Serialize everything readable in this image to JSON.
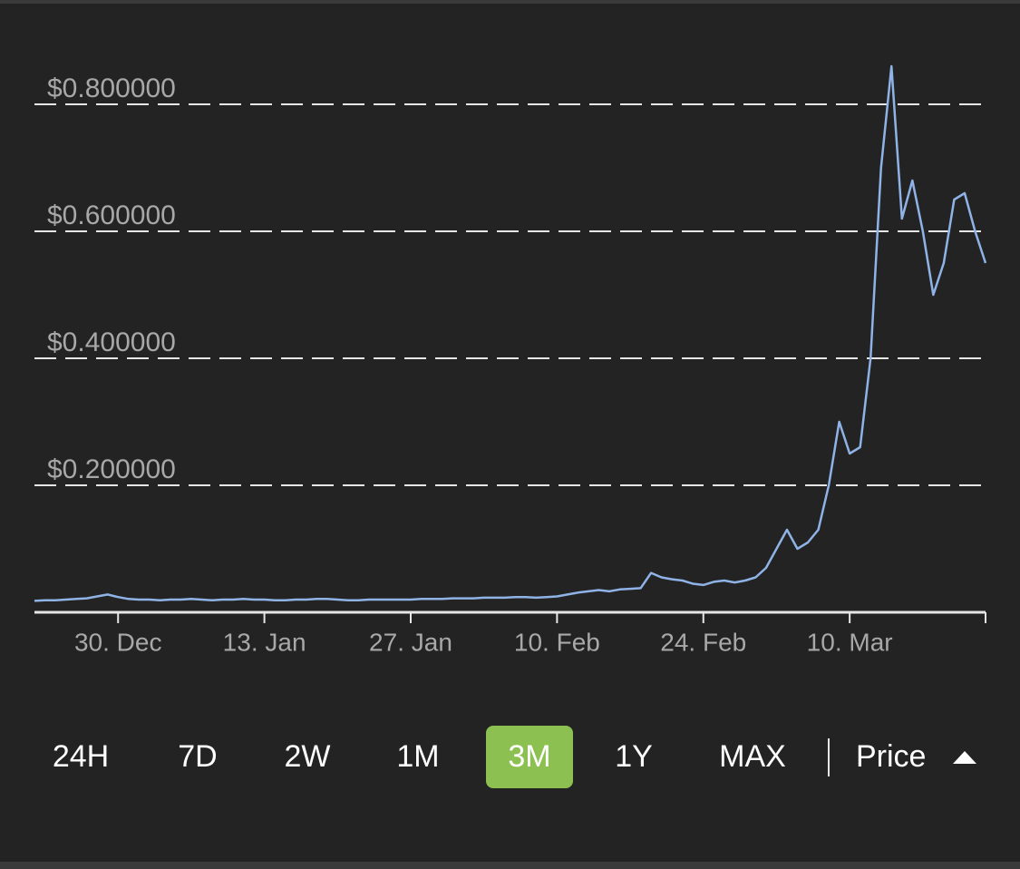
{
  "chart_data": {
    "type": "line",
    "x": [
      "22. Dec",
      "23. Dec",
      "24. Dec",
      "25. Dec",
      "26. Dec",
      "27. Dec",
      "28. Dec",
      "29. Dec",
      "30. Dec",
      "31. Dec",
      "1. Jan",
      "2. Jan",
      "3. Jan",
      "4. Jan",
      "5. Jan",
      "6. Jan",
      "7. Jan",
      "8. Jan",
      "9. Jan",
      "10. Jan",
      "11. Jan",
      "12. Jan",
      "13. Jan",
      "14. Jan",
      "15. Jan",
      "16. Jan",
      "17. Jan",
      "18. Jan",
      "19. Jan",
      "20. Jan",
      "21. Jan",
      "22. Jan",
      "23. Jan",
      "24. Jan",
      "25. Jan",
      "26. Jan",
      "27. Jan",
      "28. Jan",
      "29. Jan",
      "30. Jan",
      "31. Jan",
      "1. Feb",
      "2. Feb",
      "3. Feb",
      "4. Feb",
      "5. Feb",
      "6. Feb",
      "7. Feb",
      "8. Feb",
      "9. Feb",
      "10. Feb",
      "11. Feb",
      "12. Feb",
      "13. Feb",
      "14. Feb",
      "15. Feb",
      "16. Feb",
      "17. Feb",
      "18. Feb",
      "19. Feb",
      "20. Feb",
      "21. Feb",
      "22. Feb",
      "23. Feb",
      "24. Feb",
      "25. Feb",
      "26. Feb",
      "27. Feb",
      "28. Feb",
      "1. Mar",
      "2. Mar",
      "3. Mar",
      "4. Mar",
      "5. Mar",
      "6. Mar",
      "7. Mar",
      "8. Mar",
      "9. Mar",
      "10. Mar",
      "11. Mar",
      "12. Mar",
      "13. Mar",
      "14. Mar",
      "15. Mar",
      "16. Mar",
      "17. Mar",
      "18. Mar",
      "19. Mar",
      "20. Mar",
      "21. Mar",
      "22. Mar",
      "23. Mar"
    ],
    "series": [
      {
        "name": "Price",
        "color": "#8fb3e6",
        "values": [
          0.018,
          0.019,
          0.019,
          0.02,
          0.021,
          0.022,
          0.025,
          0.028,
          0.024,
          0.021,
          0.02,
          0.02,
          0.019,
          0.02,
          0.02,
          0.021,
          0.02,
          0.019,
          0.02,
          0.02,
          0.021,
          0.02,
          0.02,
          0.019,
          0.019,
          0.02,
          0.02,
          0.021,
          0.021,
          0.02,
          0.019,
          0.019,
          0.02,
          0.02,
          0.02,
          0.02,
          0.02,
          0.021,
          0.021,
          0.021,
          0.022,
          0.022,
          0.022,
          0.023,
          0.023,
          0.023,
          0.024,
          0.024,
          0.023,
          0.024,
          0.025,
          0.028,
          0.031,
          0.033,
          0.035,
          0.033,
          0.036,
          0.037,
          0.038,
          0.062,
          0.055,
          0.052,
          0.05,
          0.045,
          0.043,
          0.048,
          0.05,
          0.047,
          0.05,
          0.055,
          0.07,
          0.1,
          0.13,
          0.1,
          0.11,
          0.13,
          0.2,
          0.3,
          0.25,
          0.26,
          0.4,
          0.7,
          0.86,
          0.62,
          0.68,
          0.6,
          0.5,
          0.55,
          0.65,
          0.66,
          0.6,
          0.55
        ]
      }
    ],
    "xticks": [
      "30. Dec",
      "13. Jan",
      "27. Jan",
      "10. Feb",
      "24. Feb",
      "10. Mar"
    ],
    "ylim": [
      0,
      0.88
    ],
    "yticks": [
      {
        "value": 0.2,
        "label": "$0.200000"
      },
      {
        "value": 0.4,
        "label": "$0.400000"
      },
      {
        "value": 0.6,
        "label": "$0.600000"
      },
      {
        "value": 0.8,
        "label": "$0.800000"
      }
    ],
    "grid": true
  },
  "controls": {
    "ranges": [
      "24H",
      "7D",
      "2W",
      "1M",
      "3M",
      "1Y",
      "MAX"
    ],
    "selected_range": 4,
    "metric": "Price"
  }
}
